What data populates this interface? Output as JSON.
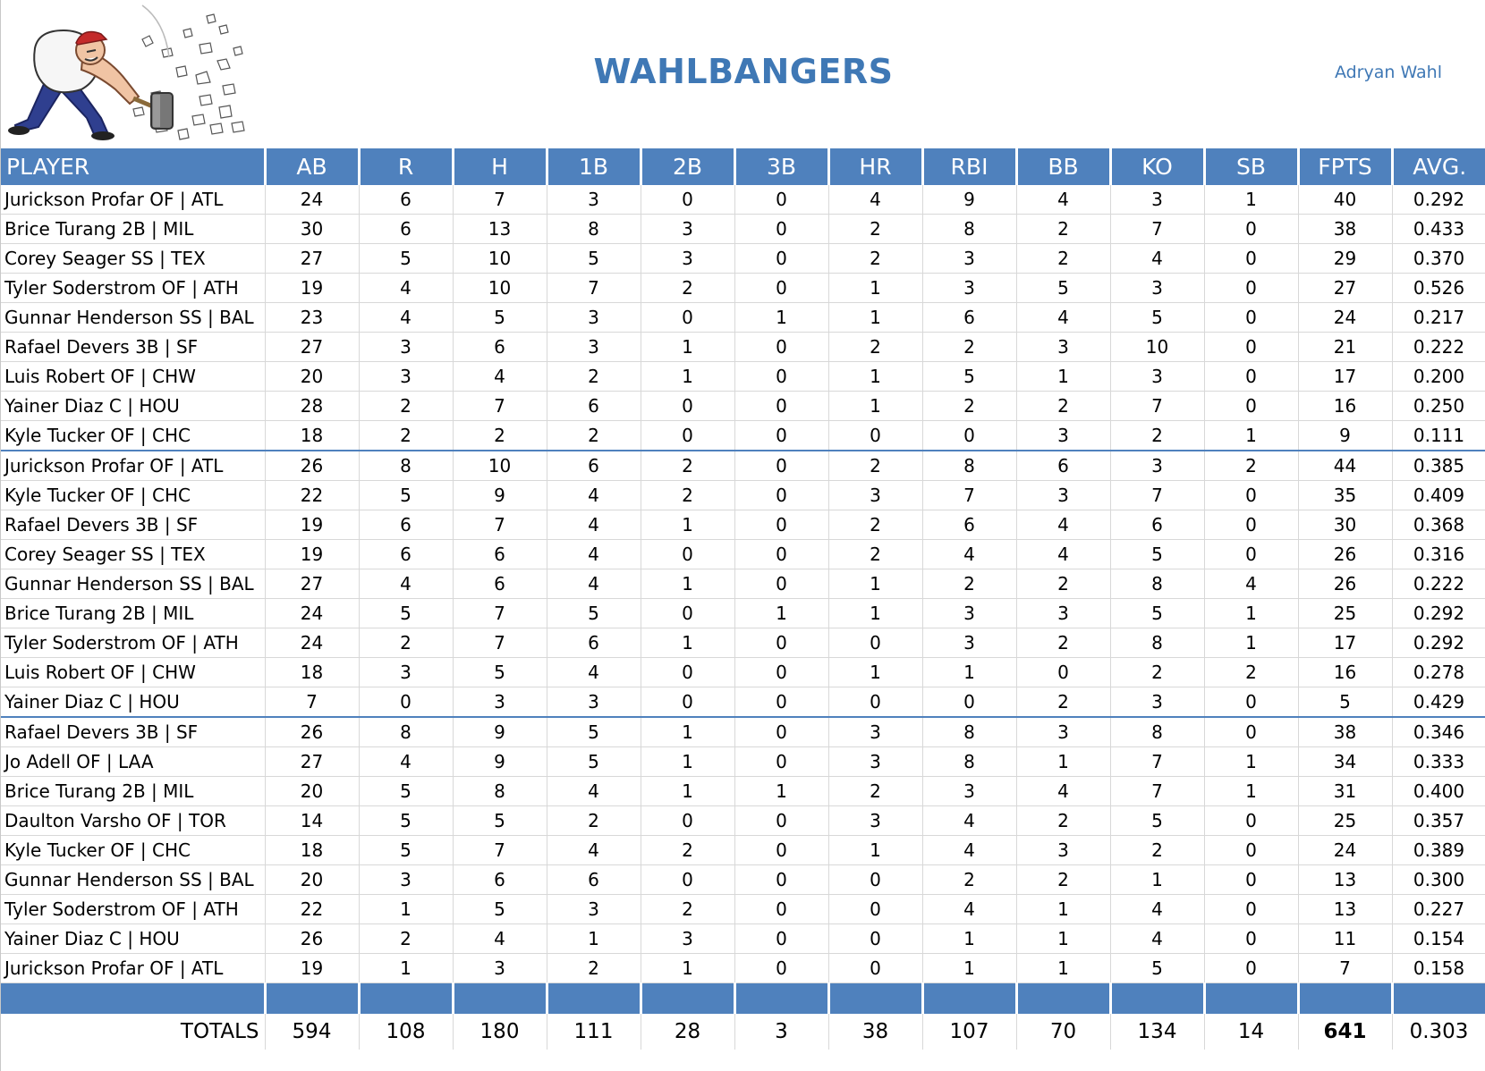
{
  "header": {
    "title": "WAHLBANGERS",
    "owner": "Adryan Wahl",
    "logo_icon": "cartoon-man-sledgehammer-icon"
  },
  "columns": [
    "PLAYER",
    "AB",
    "R",
    "H",
    "1B",
    "2B",
    "3B",
    "HR",
    "RBI",
    "BB",
    "KO",
    "SB",
    "FPTS",
    "AVG."
  ],
  "groups": [
    [
      [
        "Jurickson Profar OF | ATL",
        "24",
        "6",
        "7",
        "3",
        "0",
        "0",
        "4",
        "9",
        "4",
        "3",
        "1",
        "40",
        "0.292"
      ],
      [
        "Brice Turang 2B | MIL",
        "30",
        "6",
        "13",
        "8",
        "3",
        "0",
        "2",
        "8",
        "2",
        "7",
        "0",
        "38",
        "0.433"
      ],
      [
        "Corey Seager SS | TEX",
        "27",
        "5",
        "10",
        "5",
        "3",
        "0",
        "2",
        "3",
        "2",
        "4",
        "0",
        "29",
        "0.370"
      ],
      [
        "Tyler Soderstrom OF | ATH",
        "19",
        "4",
        "10",
        "7",
        "2",
        "0",
        "1",
        "3",
        "5",
        "3",
        "0",
        "27",
        "0.526"
      ],
      [
        "Gunnar Henderson SS | BAL",
        "23",
        "4",
        "5",
        "3",
        "0",
        "1",
        "1",
        "6",
        "4",
        "5",
        "0",
        "24",
        "0.217"
      ],
      [
        "Rafael Devers 3B | SF",
        "27",
        "3",
        "6",
        "3",
        "1",
        "0",
        "2",
        "2",
        "3",
        "10",
        "0",
        "21",
        "0.222"
      ],
      [
        "Luis Robert OF | CHW",
        "20",
        "3",
        "4",
        "2",
        "1",
        "0",
        "1",
        "5",
        "1",
        "3",
        "0",
        "17",
        "0.200"
      ],
      [
        "Yainer Diaz C | HOU",
        "28",
        "2",
        "7",
        "6",
        "0",
        "0",
        "1",
        "2",
        "2",
        "7",
        "0",
        "16",
        "0.250"
      ],
      [
        "Kyle Tucker OF | CHC",
        "18",
        "2",
        "2",
        "2",
        "0",
        "0",
        "0",
        "0",
        "3",
        "2",
        "1",
        "9",
        "0.111"
      ]
    ],
    [
      [
        "Jurickson Profar OF | ATL",
        "26",
        "8",
        "10",
        "6",
        "2",
        "0",
        "2",
        "8",
        "6",
        "3",
        "2",
        "44",
        "0.385"
      ],
      [
        "Kyle Tucker OF | CHC",
        "22",
        "5",
        "9",
        "4",
        "2",
        "0",
        "3",
        "7",
        "3",
        "7",
        "0",
        "35",
        "0.409"
      ],
      [
        "Rafael Devers 3B | SF",
        "19",
        "6",
        "7",
        "4",
        "1",
        "0",
        "2",
        "6",
        "4",
        "6",
        "0",
        "30",
        "0.368"
      ],
      [
        "Corey Seager SS | TEX",
        "19",
        "6",
        "6",
        "4",
        "0",
        "0",
        "2",
        "4",
        "4",
        "5",
        "0",
        "26",
        "0.316"
      ],
      [
        "Gunnar Henderson SS | BAL",
        "27",
        "4",
        "6",
        "4",
        "1",
        "0",
        "1",
        "2",
        "2",
        "8",
        "4",
        "26",
        "0.222"
      ],
      [
        "Brice Turang 2B | MIL",
        "24",
        "5",
        "7",
        "5",
        "0",
        "1",
        "1",
        "3",
        "3",
        "5",
        "1",
        "25",
        "0.292"
      ],
      [
        "Tyler Soderstrom OF | ATH",
        "24",
        "2",
        "7",
        "6",
        "1",
        "0",
        "0",
        "3",
        "2",
        "8",
        "1",
        "17",
        "0.292"
      ],
      [
        "Luis Robert OF | CHW",
        "18",
        "3",
        "5",
        "4",
        "0",
        "0",
        "1",
        "1",
        "0",
        "2",
        "2",
        "16",
        "0.278"
      ],
      [
        "Yainer Diaz C | HOU",
        "7",
        "0",
        "3",
        "3",
        "0",
        "0",
        "0",
        "0",
        "2",
        "3",
        "0",
        "5",
        "0.429"
      ]
    ],
    [
      [
        "Rafael Devers 3B | SF",
        "26",
        "8",
        "9",
        "5",
        "1",
        "0",
        "3",
        "8",
        "3",
        "8",
        "0",
        "38",
        "0.346"
      ],
      [
        "Jo Adell OF | LAA",
        "27",
        "4",
        "9",
        "5",
        "1",
        "0",
        "3",
        "8",
        "1",
        "7",
        "1",
        "34",
        "0.333"
      ],
      [
        "Brice Turang 2B | MIL",
        "20",
        "5",
        "8",
        "4",
        "1",
        "1",
        "2",
        "3",
        "4",
        "7",
        "1",
        "31",
        "0.400"
      ],
      [
        "Daulton Varsho OF | TOR",
        "14",
        "5",
        "5",
        "2",
        "0",
        "0",
        "3",
        "4",
        "2",
        "5",
        "0",
        "25",
        "0.357"
      ],
      [
        "Kyle Tucker OF | CHC",
        "18",
        "5",
        "7",
        "4",
        "2",
        "0",
        "1",
        "4",
        "3",
        "2",
        "0",
        "24",
        "0.389"
      ],
      [
        "Gunnar Henderson SS | BAL",
        "20",
        "3",
        "6",
        "6",
        "0",
        "0",
        "0",
        "2",
        "2",
        "1",
        "0",
        "13",
        "0.300"
      ],
      [
        "Tyler Soderstrom OF | ATH",
        "22",
        "1",
        "5",
        "3",
        "2",
        "0",
        "0",
        "4",
        "1",
        "4",
        "0",
        "13",
        "0.227"
      ],
      [
        "Yainer Diaz C | HOU",
        "26",
        "2",
        "4",
        "1",
        "3",
        "0",
        "0",
        "1",
        "1",
        "4",
        "0",
        "11",
        "0.154"
      ],
      [
        "Jurickson Profar OF | ATL",
        "19",
        "1",
        "3",
        "2",
        "1",
        "0",
        "0",
        "1",
        "1",
        "5",
        "0",
        "7",
        "0.158"
      ]
    ]
  ],
  "totals": {
    "label": "TOTALS",
    "values": [
      "594",
      "108",
      "180",
      "111",
      "28",
      "3",
      "38",
      "107",
      "70",
      "134",
      "14",
      "641",
      "0.303"
    ]
  },
  "colors": {
    "header_blue": "#4f81bd",
    "title_blue": "#3f78b5"
  }
}
